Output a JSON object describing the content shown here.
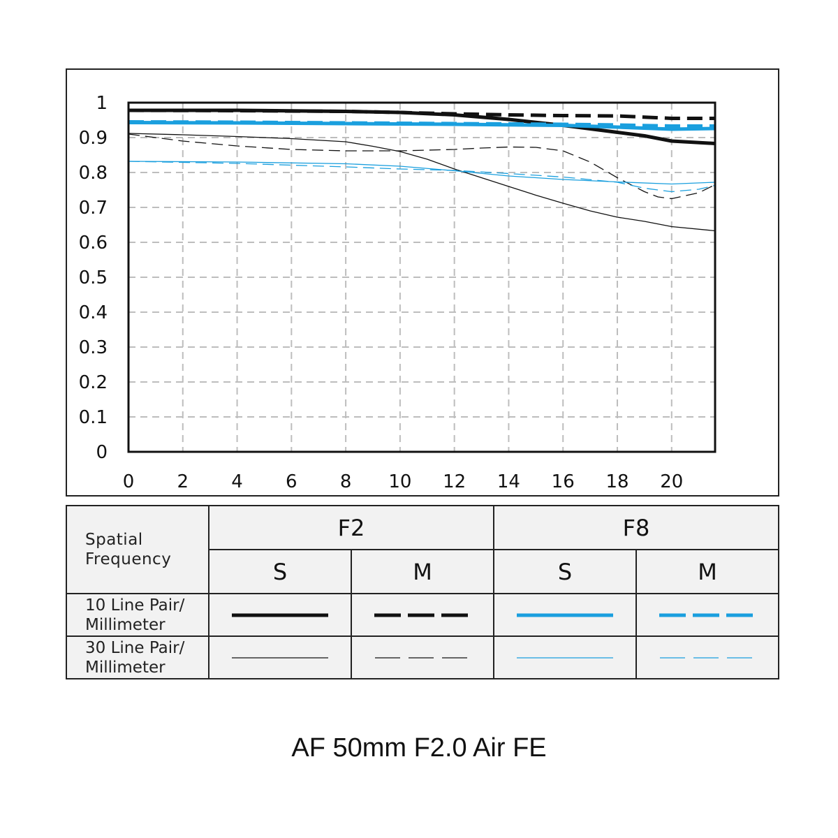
{
  "model_title": "AF 50mm F2.0 Air FE",
  "legend": {
    "spatial_frequency": [
      "Spatial",
      "Frequency"
    ],
    "aperture_f2": "F2",
    "aperture_f8": "F8",
    "sagittal": "S",
    "meridional": "M",
    "row_10": [
      "10 Line Pair/",
      "Millimeter"
    ],
    "row_30": [
      "30 Line Pair/",
      "Millimeter"
    ]
  },
  "colors": {
    "f2": "#111111",
    "f8": "#1a9fde",
    "grid": "#bdbdbd"
  },
  "chart_data": {
    "type": "line",
    "xlim": [
      0,
      21.6
    ],
    "ylim": [
      0,
      1
    ],
    "x_ticks": [
      "0",
      "2",
      "4",
      "6",
      "8",
      "10",
      "12",
      "14",
      "16",
      "18",
      "20"
    ],
    "y_ticks": [
      "0",
      "0.1",
      "0.2",
      "0.3",
      "0.4",
      "0.5",
      "0.6",
      "0.7",
      "0.8",
      "0.9",
      "1"
    ],
    "grid": true,
    "series": [
      {
        "name": "F2 S 10 Line Pair/Millimeter",
        "style": "solid",
        "weight": "thick",
        "color": "#111111",
        "x": [
          0,
          4,
          8,
          10,
          12,
          14,
          16,
          18,
          19,
          20,
          21.6
        ],
        "y": [
          0.978,
          0.978,
          0.975,
          0.972,
          0.965,
          0.952,
          0.935,
          0.915,
          0.905,
          0.89,
          0.883
        ]
      },
      {
        "name": "F2 M 10 Line Pair/Millimeter",
        "style": "dashed",
        "weight": "thick",
        "color": "#111111",
        "x": [
          0,
          4,
          8,
          10,
          12,
          14,
          16,
          18,
          20,
          21.6
        ],
        "y": [
          0.978,
          0.977,
          0.975,
          0.972,
          0.968,
          0.965,
          0.963,
          0.962,
          0.955,
          0.955
        ]
      },
      {
        "name": "F8 S 10 Line Pair/Millimeter",
        "style": "solid",
        "weight": "thick",
        "color": "#1a9fde",
        "x": [
          0,
          4,
          8,
          12,
          16,
          18,
          20,
          21.6
        ],
        "y": [
          0.943,
          0.942,
          0.94,
          0.938,
          0.935,
          0.93,
          0.924,
          0.926
        ]
      },
      {
        "name": "F8 M 10 Line Pair/Millimeter",
        "style": "dashed",
        "weight": "thick",
        "color": "#1a9fde",
        "x": [
          0,
          4,
          8,
          12,
          16,
          18,
          20,
          21.6
        ],
        "y": [
          0.945,
          0.944,
          0.942,
          0.94,
          0.938,
          0.936,
          0.933,
          0.933
        ]
      },
      {
        "name": "F2 S 30 Line Pair/Millimeter",
        "style": "solid",
        "weight": "thin",
        "color": "#111111",
        "x": [
          0,
          2,
          4,
          6,
          8,
          9,
          10,
          11,
          12,
          13,
          14,
          15,
          16,
          17,
          18,
          19,
          20,
          21.6
        ],
        "y": [
          0.912,
          0.908,
          0.903,
          0.897,
          0.888,
          0.875,
          0.86,
          0.838,
          0.81,
          0.785,
          0.76,
          0.735,
          0.712,
          0.69,
          0.672,
          0.66,
          0.645,
          0.633
        ]
      },
      {
        "name": "F2 M 30 Line Pair/Millimeter",
        "style": "dashed",
        "weight": "thin",
        "color": "#111111",
        "x": [
          0,
          2,
          4,
          6,
          8,
          10,
          12,
          13,
          14,
          15,
          16,
          17,
          18,
          19,
          19.5,
          20,
          21,
          21.6
        ],
        "y": [
          0.91,
          0.89,
          0.876,
          0.866,
          0.862,
          0.862,
          0.866,
          0.87,
          0.873,
          0.872,
          0.862,
          0.83,
          0.785,
          0.745,
          0.73,
          0.725,
          0.742,
          0.765
        ]
      },
      {
        "name": "F8 S 30 Line Pair/Millimeter",
        "style": "solid",
        "weight": "thin",
        "color": "#1a9fde",
        "x": [
          0,
          4,
          8,
          10,
          12,
          14,
          16,
          18,
          20,
          21.6
        ],
        "y": [
          0.832,
          0.83,
          0.825,
          0.818,
          0.805,
          0.79,
          0.78,
          0.773,
          0.767,
          0.772
        ]
      },
      {
        "name": "F8 M 30 Line Pair/Millimeter",
        "style": "dashed",
        "weight": "thin",
        "color": "#1a9fde",
        "x": [
          0,
          4,
          8,
          10,
          12,
          14,
          16,
          18,
          19,
          20,
          21,
          21.6
        ],
        "y": [
          0.832,
          0.826,
          0.816,
          0.81,
          0.806,
          0.797,
          0.787,
          0.772,
          0.755,
          0.745,
          0.752,
          0.763
        ]
      }
    ]
  }
}
